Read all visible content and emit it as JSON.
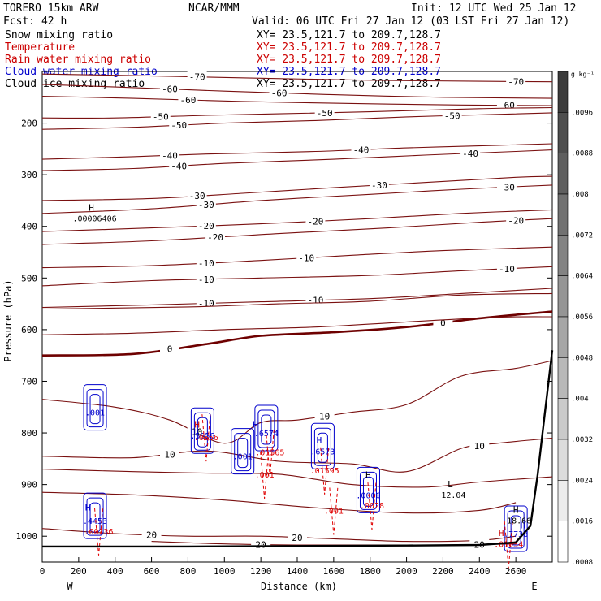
{
  "header": {
    "model": "TORERO  15km ARW",
    "center": "NCAR/MMM",
    "init": "Init: 12 UTC Wed 25 Jan 12",
    "fcst": "Fcst:   42 h",
    "valid": "Valid: 06 UTC Fri 27 Jan 12 (03 LST Fri 27 Jan 12)"
  },
  "fields": [
    {
      "name": "Snow mixing ratio",
      "xs": "XY=  23.5,121.7 to 209.7,128.7",
      "color": "#000000",
      "xs_color": "#000000"
    },
    {
      "name": "Temperature",
      "xs": "XY=  23.5,121.7 to 209.7,128.7",
      "color": "#cc0000",
      "xs_color": "#cc0000"
    },
    {
      "name": "Rain water mixing ratio",
      "xs": "XY=  23.5,121.7 to 209.7,128.7",
      "color": "#cc0000",
      "xs_color": "#cc0000"
    },
    {
      "name": "Cloud water mixing ratio",
      "xs": "XY=  23.5,121.7 to 209.7,128.7",
      "color": "#0000cc",
      "xs_color": "#0000cc"
    },
    {
      "name": "Cloud ice mixing ratio",
      "xs": "XY=  23.5,121.7 to 209.7,128.7",
      "color": "#000000",
      "xs_color": "#000000"
    }
  ],
  "colors": {
    "temperature": "#7a1010",
    "zero_isotherm": "#6e0000",
    "cloud_water": "#0000cc",
    "rain": "#e00000",
    "terrain": "#000000"
  },
  "chart_data": {
    "type": "cross-section contour",
    "xlabel": "Distance (km)",
    "ylabel": "Pressure (hPa)",
    "xlim": [
      0,
      2800
    ],
    "ylim": [
      1050,
      100
    ],
    "x_ticks": [
      0,
      200,
      400,
      600,
      800,
      1000,
      1200,
      1400,
      1600,
      1800,
      2000,
      2200,
      2400,
      2600
    ],
    "x_tick_labels": [
      "0",
      "200",
      "400",
      "600",
      "800",
      "1000",
      "1200",
      "1400",
      "1600",
      "1800",
      "2000",
      "2200",
      "2400",
      "2600"
    ],
    "y_ticks": [
      200,
      300,
      400,
      500,
      600,
      700,
      800,
      900,
      1000
    ],
    "y_tick_labels": [
      "200",
      "300",
      "400",
      "500",
      "600",
      "700",
      "800",
      "900",
      "1000"
    ],
    "end_labels": {
      "left": "W",
      "right": "E"
    },
    "colorbar": {
      "unit": "g kg⁻¹",
      "labels": [
        ".0096",
        ".0088",
        ".008",
        ".0072",
        ".0064",
        ".0056",
        ".0048",
        ".004",
        ".0032",
        ".0024",
        ".0016",
        ".0008"
      ],
      "values": [
        0.0096,
        0.0088,
        0.008,
        0.0072,
        0.0064,
        0.0056,
        0.0048,
        0.004,
        0.0032,
        0.0024,
        0.0016,
        0.0008
      ]
    },
    "temperature_contours": [
      {
        "label": "-70",
        "points": [
          [
            0,
            105
          ],
          [
            500,
            108
          ],
          [
            1200,
            113
          ],
          [
            1800,
            117
          ],
          [
            2400,
            119
          ],
          [
            2800,
            120
          ]
        ]
      },
      {
        "label": "-60",
        "points": [
          [
            0,
            125
          ],
          [
            400,
            130
          ],
          [
            1000,
            138
          ],
          [
            1600,
            145
          ],
          [
            2200,
            150
          ],
          [
            2800,
            152
          ]
        ]
      },
      {
        "label": "-60",
        "points": [
          [
            0,
            148
          ],
          [
            500,
            152
          ],
          [
            1100,
            158
          ],
          [
            1700,
            162
          ],
          [
            2300,
            165
          ],
          [
            2800,
            166
          ]
        ]
      },
      {
        "label": "-50",
        "points": [
          [
            0,
            190
          ],
          [
            400,
            190
          ],
          [
            900,
            185
          ],
          [
            1300,
            182
          ],
          [
            1800,
            178
          ],
          [
            2400,
            172
          ],
          [
            2800,
            170
          ]
        ]
      },
      {
        "label": "-50",
        "points": [
          [
            0,
            212
          ],
          [
            500,
            208
          ],
          [
            1000,
            200
          ],
          [
            1500,
            195
          ],
          [
            2000,
            188
          ],
          [
            2500,
            183
          ],
          [
            2800,
            180
          ]
        ]
      },
      {
        "label": "-40",
        "points": [
          [
            0,
            270
          ],
          [
            500,
            265
          ],
          [
            900,
            260
          ],
          [
            1500,
            255
          ],
          [
            2000,
            248
          ],
          [
            2500,
            243
          ],
          [
            2800,
            240
          ]
        ]
      },
      {
        "label": "-40",
        "points": [
          [
            0,
            292
          ],
          [
            500,
            288
          ],
          [
            1000,
            278
          ],
          [
            1600,
            270
          ],
          [
            2100,
            262
          ],
          [
            2600,
            255
          ],
          [
            2800,
            252
          ]
        ]
      },
      {
        "label": "-30",
        "points": [
          [
            0,
            350
          ],
          [
            600,
            346
          ],
          [
            1100,
            336
          ],
          [
            1600,
            325
          ],
          [
            2100,
            315
          ],
          [
            2600,
            305
          ],
          [
            2800,
            303
          ]
        ]
      },
      {
        "label": "-30",
        "points": [
          [
            0,
            375
          ],
          [
            600,
            366
          ],
          [
            1200,
            350
          ],
          [
            1800,
            338
          ],
          [
            2300,
            328
          ],
          [
            2800,
            320
          ]
        ]
      },
      {
        "label": "-20",
        "points": [
          [
            0,
            410
          ],
          [
            600,
            403
          ],
          [
            1200,
            395
          ],
          [
            1800,
            385
          ],
          [
            2300,
            375
          ],
          [
            2800,
            368
          ]
        ]
      },
      {
        "label": "-20",
        "points": [
          [
            0,
            435
          ],
          [
            600,
            428
          ],
          [
            1300,
            414
          ],
          [
            1900,
            403
          ],
          [
            2400,
            392
          ],
          [
            2800,
            385
          ]
        ]
      },
      {
        "label": "-10",
        "points": [
          [
            0,
            480
          ],
          [
            600,
            476
          ],
          [
            1200,
            466
          ],
          [
            1700,
            456
          ],
          [
            2200,
            447
          ],
          [
            2800,
            440
          ]
        ]
      },
      {
        "label": "-10",
        "points": [
          [
            0,
            515
          ],
          [
            600,
            505
          ],
          [
            1200,
            500
          ],
          [
            1800,
            495
          ],
          [
            2300,
            486
          ],
          [
            2800,
            478
          ]
        ]
      },
      {
        "label": "-10",
        "points": [
          [
            0,
            557
          ],
          [
            600,
            552
          ],
          [
            1200,
            546
          ],
          [
            1800,
            540
          ],
          [
            2300,
            530
          ],
          [
            2800,
            520
          ]
        ]
      },
      {
        "label": "0",
        "points": [
          [
            0,
            650
          ],
          [
            500,
            647
          ],
          [
            900,
            628
          ],
          [
            1200,
            612
          ],
          [
            1600,
            605
          ],
          [
            2000,
            595
          ],
          [
            2400,
            578
          ],
          [
            2800,
            565
          ]
        ]
      },
      {
        "label": "",
        "points": [
          [
            0,
            610
          ],
          [
            500,
            607
          ],
          [
            1000,
            600
          ],
          [
            1500,
            595
          ],
          [
            2000,
            585
          ],
          [
            2500,
            576
          ],
          [
            2800,
            575
          ]
        ]
      },
      {
        "label": "",
        "points": [
          [
            0,
            560
          ],
          [
            800,
            556
          ],
          [
            1300,
            550
          ],
          [
            1800,
            545
          ],
          [
            2300,
            533
          ],
          [
            2800,
            530
          ]
        ]
      },
      {
        "label": "10",
        "points": [
          [
            0,
            735
          ],
          [
            400,
            750
          ],
          [
            700,
            775
          ],
          [
            1000,
            820
          ],
          [
            1200,
            780
          ],
          [
            1400,
            775
          ],
          [
            1700,
            760
          ],
          [
            2000,
            745
          ],
          [
            2300,
            690
          ],
          [
            2600,
            675
          ],
          [
            2800,
            660
          ]
        ]
      },
      {
        "label": "10",
        "points": [
          [
            0,
            845
          ],
          [
            500,
            848
          ],
          [
            900,
            835
          ],
          [
            1300,
            855
          ],
          [
            1700,
            860
          ],
          [
            2000,
            875
          ],
          [
            2300,
            830
          ],
          [
            2500,
            820
          ],
          [
            2800,
            810
          ]
        ]
      },
      {
        "label": "",
        "points": [
          [
            0,
            870
          ],
          [
            500,
            875
          ],
          [
            900,
            878
          ],
          [
            1300,
            880
          ],
          [
            1700,
            900
          ],
          [
            2100,
            905
          ],
          [
            2400,
            895
          ],
          [
            2800,
            885
          ]
        ]
      },
      {
        "label": "",
        "points": [
          [
            0,
            915
          ],
          [
            500,
            920
          ],
          [
            1000,
            930
          ],
          [
            1500,
            945
          ],
          [
            2000,
            955
          ],
          [
            2400,
            950
          ],
          [
            2600,
            935
          ]
        ]
      },
      {
        "label": "20",
        "points": [
          [
            0,
            985
          ],
          [
            400,
            995
          ],
          [
            800,
            1000
          ],
          [
            1200,
            1000
          ],
          [
            1600,
            1005
          ],
          [
            2000,
            1010
          ],
          [
            2400,
            1008
          ],
          [
            2600,
            1000
          ]
        ]
      },
      {
        "label": "20",
        "points": [
          [
            600,
            1010
          ],
          [
            1000,
            1015
          ],
          [
            1400,
            1017
          ],
          [
            1800,
            1017
          ],
          [
            2200,
            1017
          ],
          [
            2600,
            1015
          ]
        ]
      }
    ],
    "terrain": [
      [
        0,
        1020
      ],
      [
        800,
        1020
      ],
      [
        1400,
        1019
      ],
      [
        2000,
        1018
      ],
      [
        2400,
        1017
      ],
      [
        2600,
        1012
      ],
      [
        2680,
        980
      ],
      [
        2720,
        880
      ],
      [
        2760,
        760
      ],
      [
        2800,
        640
      ]
    ],
    "cloud_water_cells": [
      {
        "label": ".001",
        "x": 290,
        "p": 760
      },
      {
        "label": ".5656",
        "x": 880,
        "p": 805
      },
      {
        "label": ".001",
        "x": 1100,
        "p": 845
      },
      {
        "label": ".6574",
        "x": 1230,
        "p": 800
      },
      {
        "label": ".6573",
        "x": 1540,
        "p": 835
      },
      {
        "label": ".0006",
        "x": 1790,
        "p": 920
      },
      {
        "label": ".4453",
        "x": 290,
        "p": 970
      },
      {
        "label": ".7738",
        "x": 2600,
        "p": 995
      }
    ],
    "rain_labels": [
      {
        "label": ".0556",
        "x": 900,
        "p": 808
      },
      {
        "label": ".01565",
        "x": 1250,
        "p": 837
      },
      {
        "label": ".001",
        "x": 1220,
        "p": 880
      },
      {
        "label": ".01595",
        "x": 1550,
        "p": 872
      },
      {
        "label": ".001",
        "x": 1600,
        "p": 950
      },
      {
        "label": ".0028",
        "x": 1810,
        "p": 940
      },
      {
        "label": ".00136",
        "x": 310,
        "p": 990
      },
      {
        "label": ".01034",
        "x": 2560,
        "p": 1015
      }
    ],
    "extrema": [
      {
        "marker": "H",
        "value": ".00006406",
        "x": 270,
        "p": 370,
        "color": "#000000"
      },
      {
        "marker": "H",
        "value": "",
        "x": 850,
        "p": 790,
        "color": "#cc0000"
      },
      {
        "marker": "H",
        "value": "",
        "x": 1170,
        "p": 790,
        "color": "#0000cc"
      },
      {
        "marker": "H",
        "value": "",
        "x": 1520,
        "p": 820,
        "color": "#0000cc"
      },
      {
        "marker": "H",
        "value": "",
        "x": 1790,
        "p": 887,
        "color": "#000000"
      },
      {
        "marker": "H",
        "value": "",
        "x": 250,
        "p": 950,
        "color": "#0000cc"
      },
      {
        "marker": "L",
        "value": "12.04",
        "x": 2240,
        "p": 905,
        "color": "#000000"
      },
      {
        "marker": "H",
        "value": "18.66",
        "x": 2600,
        "p": 955,
        "color": "#000000"
      },
      {
        "marker": "H",
        "value": "",
        "x": 2520,
        "p": 1000,
        "color": "#cc0000"
      },
      {
        "marker": "H",
        "value": "",
        "x": 2640,
        "p": 985,
        "color": "#0000cc"
      }
    ]
  }
}
